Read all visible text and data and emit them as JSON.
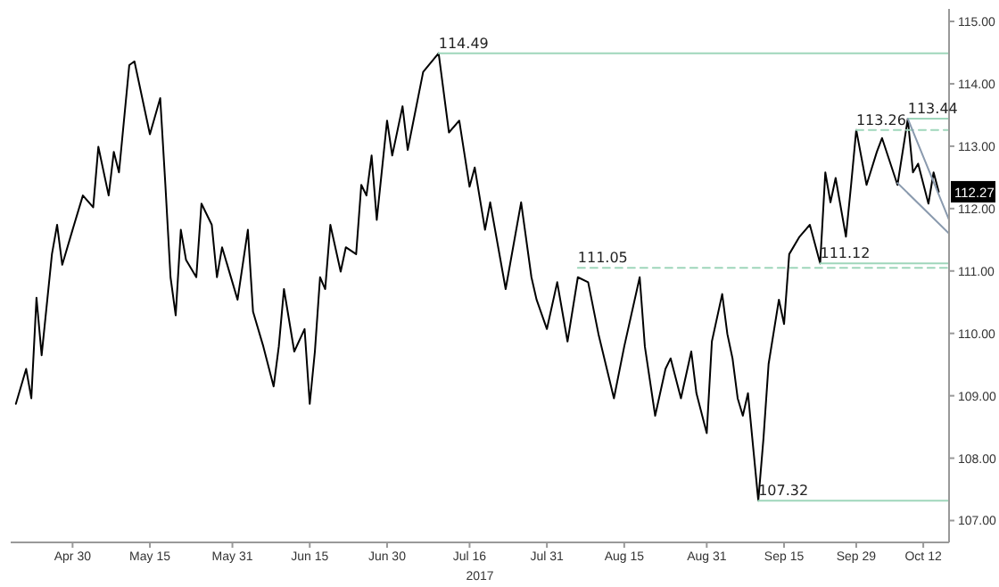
{
  "chart_data": {
    "type": "line",
    "xlabel": "2017",
    "xlim": [
      "2017-04-18",
      "2017-10-17"
    ],
    "xticks": [
      {
        "value": "2017-04-30",
        "label": "Apr 30"
      },
      {
        "value": "2017-05-15",
        "label": "May 15"
      },
      {
        "value": "2017-05-31",
        "label": "May 31"
      },
      {
        "value": "2017-06-15",
        "label": "Jun 15"
      },
      {
        "value": "2017-06-30",
        "label": "Jun 30"
      },
      {
        "value": "2017-07-16",
        "label": "Jul 16"
      },
      {
        "value": "2017-07-31",
        "label": "Jul 31"
      },
      {
        "value": "2017-08-15",
        "label": "Aug 15"
      },
      {
        "value": "2017-08-31",
        "label": "Aug 31"
      },
      {
        "value": "2017-09-15",
        "label": "Sep 15"
      },
      {
        "value": "2017-09-29",
        "label": "Sep 29"
      },
      {
        "value": "2017-10-12",
        "label": "Oct 12"
      }
    ],
    "ylim": [
      106.65,
      115.2
    ],
    "yticks": [
      {
        "value": 107,
        "label": "107.00"
      },
      {
        "value": 108,
        "label": "108.00"
      },
      {
        "value": 109,
        "label": "109.00"
      },
      {
        "value": 110,
        "label": "110.00"
      },
      {
        "value": 111,
        "label": "111.00"
      },
      {
        "value": 112,
        "label": "112.00"
      },
      {
        "value": 113,
        "label": "113.00"
      },
      {
        "value": 114,
        "label": "114.00"
      },
      {
        "value": 115,
        "label": "115.00"
      }
    ],
    "grid": false,
    "legend": false,
    "marker": "none",
    "series": [
      {
        "color": "#000000",
        "line_style": "solid",
        "x": [
          "2017-04-19",
          "2017-04-21",
          "2017-04-22",
          "2017-04-23",
          "2017-04-24",
          "2017-04-26",
          "2017-04-27",
          "2017-04-28",
          "2017-04-30",
          "2017-05-02",
          "2017-05-04",
          "2017-05-05",
          "2017-05-07",
          "2017-05-08",
          "2017-05-09",
          "2017-05-11",
          "2017-05-12",
          "2017-05-15",
          "2017-05-17",
          "2017-05-18",
          "2017-05-19",
          "2017-05-20",
          "2017-05-21",
          "2017-05-22",
          "2017-05-24",
          "2017-05-25",
          "2017-05-27",
          "2017-05-28",
          "2017-05-29",
          "2017-05-31",
          "2017-06-01",
          "2017-06-03",
          "2017-06-04",
          "2017-06-06",
          "2017-06-08",
          "2017-06-09",
          "2017-06-10",
          "2017-06-12",
          "2017-06-14",
          "2017-06-15",
          "2017-06-16",
          "2017-06-17",
          "2017-06-18",
          "2017-06-19",
          "2017-06-21",
          "2017-06-22",
          "2017-06-24",
          "2017-06-25",
          "2017-06-26",
          "2017-06-27",
          "2017-06-28",
          "2017-06-30",
          "2017-07-01",
          "2017-07-03",
          "2017-07-04",
          "2017-07-07",
          "2017-07-10",
          "2017-07-12",
          "2017-07-14",
          "2017-07-16",
          "2017-07-17",
          "2017-07-19",
          "2017-07-20",
          "2017-07-23",
          "2017-07-26",
          "2017-07-28",
          "2017-07-29",
          "2017-07-31",
          "2017-08-02",
          "2017-08-04",
          "2017-08-06",
          "2017-08-08",
          "2017-08-10",
          "2017-08-13",
          "2017-08-15",
          "2017-08-18",
          "2017-08-19",
          "2017-08-21",
          "2017-08-23",
          "2017-08-24",
          "2017-08-26",
          "2017-08-28",
          "2017-08-29",
          "2017-08-31",
          "2017-09-01",
          "2017-09-03",
          "2017-09-04",
          "2017-09-05",
          "2017-09-06",
          "2017-09-07",
          "2017-09-08",
          "2017-09-10",
          "2017-09-11",
          "2017-09-12",
          "2017-09-14",
          "2017-09-15",
          "2017-09-16",
          "2017-09-18",
          "2017-09-20",
          "2017-09-22",
          "2017-09-23",
          "2017-09-24",
          "2017-09-25",
          "2017-09-27",
          "2017-09-28",
          "2017-09-29",
          "2017-10-01",
          "2017-10-03",
          "2017-10-04",
          "2017-10-07",
          "2017-10-09",
          "2017-10-10",
          "2017-10-11",
          "2017-10-13",
          "2017-10-14",
          "2017-10-15"
        ],
        "values": [
          108.87,
          109.43,
          108.96,
          110.57,
          109.65,
          111.27,
          111.74,
          111.1,
          111.66,
          112.21,
          112.02,
          112.99,
          112.21,
          112.91,
          112.58,
          114.3,
          114.36,
          113.19,
          113.77,
          112.38,
          110.9,
          110.29,
          111.66,
          111.18,
          110.9,
          112.08,
          111.74,
          110.9,
          111.38,
          110.82,
          110.54,
          111.66,
          110.35,
          109.79,
          109.15,
          109.79,
          110.71,
          109.71,
          110.07,
          108.87,
          109.71,
          110.9,
          110.71,
          111.74,
          110.99,
          111.38,
          111.27,
          112.38,
          112.21,
          112.85,
          111.82,
          113.41,
          112.85,
          113.64,
          112.94,
          114.19,
          114.49,
          113.22,
          113.41,
          112.35,
          112.66,
          111.66,
          112.1,
          110.71,
          112.1,
          110.9,
          110.54,
          110.07,
          110.82,
          109.87,
          110.9,
          110.82,
          109.99,
          108.96,
          109.79,
          110.9,
          109.79,
          108.68,
          109.43,
          109.6,
          108.96,
          109.71,
          109.04,
          108.4,
          109.87,
          110.63,
          109.99,
          109.6,
          108.96,
          108.68,
          109.04,
          107.32,
          108.31,
          109.51,
          110.54,
          110.15,
          111.27,
          111.55,
          111.74,
          111.12,
          112.58,
          112.1,
          112.49,
          111.55,
          112.38,
          113.26,
          112.38,
          112.91,
          113.13,
          112.38,
          113.44,
          112.58,
          112.72,
          112.08,
          112.58,
          112.27
        ]
      },
      {
        "color": "#9fd6bb",
        "line_style": "solid",
        "x": [
          "2017-07-10",
          "2017-10-17"
        ],
        "values": [
          114.49,
          114.49
        ]
      },
      {
        "color": "#9fd6bb",
        "line_style": "dashed",
        "x": [
          "2017-08-06",
          "2017-10-17"
        ],
        "values": [
          111.05,
          111.05
        ]
      },
      {
        "color": "#9fd6bb",
        "line_style": "solid",
        "x": [
          "2017-09-10",
          "2017-10-17"
        ],
        "values": [
          107.32,
          107.32
        ]
      },
      {
        "color": "#9fd6bb",
        "line_style": "dashed",
        "x": [
          "2017-09-29",
          "2017-10-17"
        ],
        "values": [
          113.26,
          113.26
        ]
      },
      {
        "color": "#9fd6bb",
        "line_style": "solid",
        "x": [
          "2017-10-09",
          "2017-10-17"
        ],
        "values": [
          113.44,
          113.44
        ]
      },
      {
        "color": "#9fd6bb",
        "line_style": "solid",
        "x": [
          "2017-09-22",
          "2017-10-17"
        ],
        "values": [
          111.12,
          111.12
        ]
      },
      {
        "color": "#8a9aae",
        "line_style": "solid",
        "x": [
          "2017-10-09",
          "2017-10-17"
        ],
        "values": [
          113.44,
          111.82
        ]
      },
      {
        "color": "#8a9aae",
        "line_style": "solid",
        "x": [
          "2017-10-07",
          "2017-10-17"
        ],
        "values": [
          112.41,
          111.6
        ]
      }
    ],
    "annotations": [
      {
        "text": "114.49",
        "x": "2017-07-10",
        "y": 114.49
      },
      {
        "text": "111.05",
        "x": "2017-08-06",
        "y": 111.05
      },
      {
        "text": "107.32",
        "x": "2017-09-10",
        "y": 107.32
      },
      {
        "text": "113.26",
        "x": "2017-09-29",
        "y": 113.26
      },
      {
        "text": "113.44",
        "x": "2017-10-09",
        "y": 113.44
      },
      {
        "text": "111.12",
        "x": "2017-09-22",
        "y": 111.12
      },
      "112.27"
    ]
  }
}
